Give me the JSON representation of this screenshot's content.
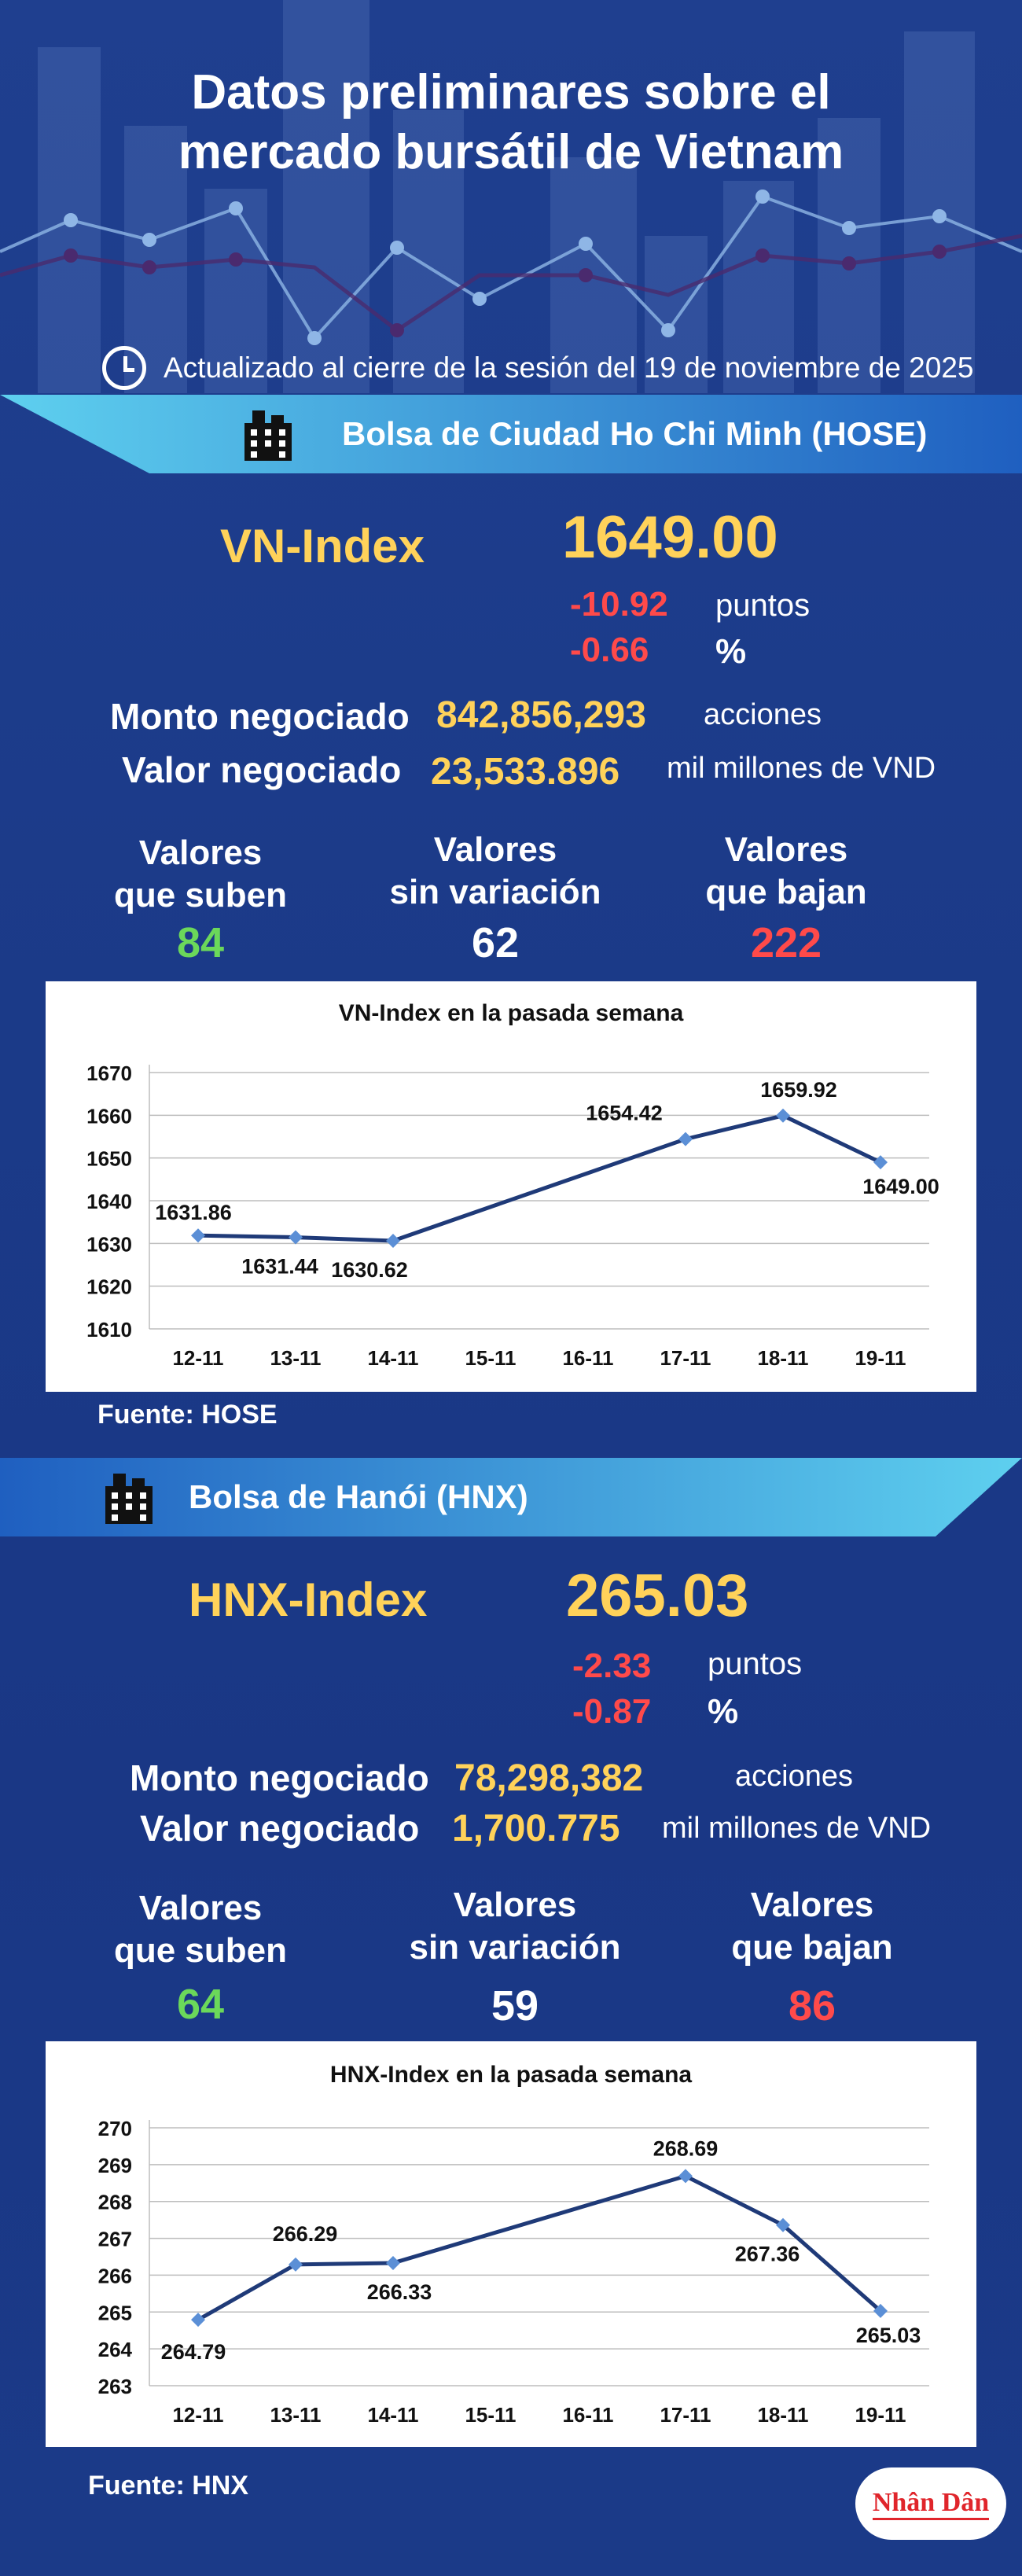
{
  "header": {
    "title_line1": "Datos preliminares sobre el",
    "title_line2": "mercado bursátil de Vietnam",
    "updated": "Actualizado al cierre de la sesión del 19 de noviembre de 2025"
  },
  "hose": {
    "exchange": "Bolsa de Ciudad Ho Chi Minh (HOSE)",
    "index_name": "VN-Index",
    "index_value": "1649.00",
    "change_points": "-10.92",
    "points_unit": "puntos",
    "change_pct": "-0.66",
    "pct_unit": "%",
    "volume_label": "Monto negociado",
    "volume": "842,856,293",
    "volume_unit": "acciones",
    "value_label": "Valor negociado",
    "value": "23,533.896",
    "value_unit": "mil millones de VND",
    "up_label_1": "Valores",
    "up_label_2": "que suben",
    "up_count": "84",
    "flat_label_1": "Valores",
    "flat_label_2": "sin variación",
    "flat_count": "62",
    "down_label_1": "Valores",
    "down_label_2": "que bajan",
    "down_count": "222",
    "source": "Fuente: HOSE"
  },
  "hnx": {
    "exchange": "Bolsa de Hanói (HNX)",
    "index_name": "HNX-Index",
    "index_value": "265.03",
    "change_points": "-2.33",
    "points_unit": "puntos",
    "change_pct": "-0.87",
    "pct_unit": "%",
    "volume_label": "Monto negociado",
    "volume": "78,298,382",
    "volume_unit": "acciones",
    "value_label": "Valor negociado",
    "value": "1,700.775",
    "value_unit": "mil millones de VND",
    "up_label_1": "Valores",
    "up_label_2": "que suben",
    "up_count": "64",
    "flat_label_1": "Valores",
    "flat_label_2": "sin variación",
    "flat_count": "59",
    "down_label_1": "Valores",
    "down_label_2": "que bajan",
    "down_count": "86",
    "source": "Fuente:  HNX"
  },
  "logo_text": "Nhân Dân",
  "colors": {
    "background": "#1b3a88",
    "accent_yellow": "#ffd25a",
    "negative": "#ff4a4a",
    "positive": "#6bd85a",
    "line": "#1f3a78",
    "marker": "#5b8fd6"
  },
  "chart_data": [
    {
      "type": "line",
      "title": "VN-Index en la pasada semana",
      "categories": [
        "12-11",
        "13-11",
        "14-11",
        "15-11",
        "16-11",
        "17-11",
        "18-11",
        "19-11"
      ],
      "series": [
        {
          "values": [
            1631.86,
            1631.44,
            1630.62,
            null,
            null,
            1654.42,
            1659.92,
            1649.0
          ]
        }
      ],
      "data_labels": [
        "1631.86",
        "1631.44",
        "1630.62",
        "",
        "",
        "1654.42",
        "1659.92",
        "1649.00"
      ],
      "yticks": [
        1610,
        1620,
        1630,
        1640,
        1650,
        1660,
        1670
      ],
      "ylim": [
        1610,
        1670
      ],
      "grid": true
    },
    {
      "type": "line",
      "title": "HNX-Index en la pasada semana",
      "categories": [
        "12-11",
        "13-11",
        "14-11",
        "15-11",
        "16-11",
        "17-11",
        "18-11",
        "19-11"
      ],
      "series": [
        {
          "values": [
            264.79,
            266.29,
            266.33,
            null,
            null,
            268.69,
            267.36,
            265.03
          ]
        }
      ],
      "data_labels": [
        "264.79",
        "266.29",
        "266.33",
        "",
        "",
        "268.69",
        "267.36",
        "265.03"
      ],
      "yticks": [
        263,
        264,
        265,
        266,
        267,
        268,
        269,
        270
      ],
      "ylim": [
        263,
        270
      ],
      "grid": true
    }
  ]
}
